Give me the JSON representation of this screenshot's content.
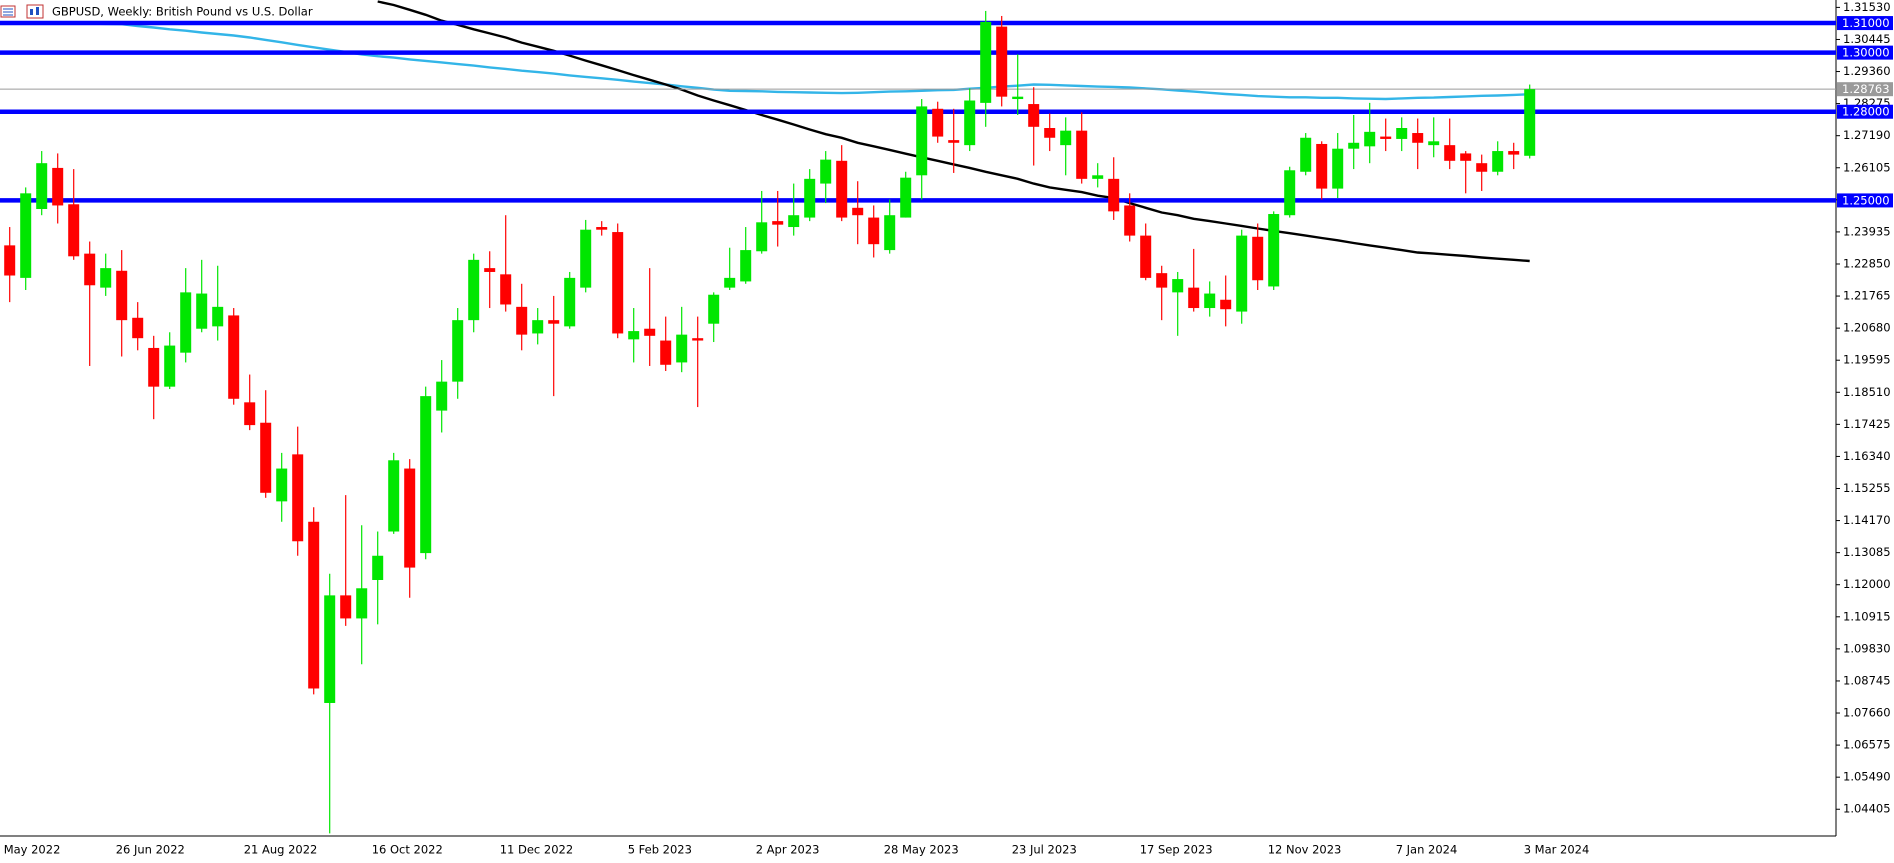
{
  "chart_data": {
    "type": "candlestick",
    "title": "GBPUSD, Weekly:  British Pound vs U.S. Dollar",
    "categories": [
      "May 2022",
      null,
      null,
      null,
      null,
      null,
      null,
      "26 Jun 2022",
      null,
      null,
      null,
      null,
      null,
      null,
      null,
      "21 Aug 2022",
      null,
      null,
      null,
      null,
      null,
      null,
      null,
      "16 Oct 2022",
      null,
      null,
      null,
      null,
      null,
      null,
      null,
      "11 Dec 2022",
      null,
      null,
      null,
      null,
      null,
      null,
      null,
      "5 Feb 2023",
      null,
      null,
      null,
      null,
      null,
      null,
      null,
      "2 Apr 2023",
      null,
      null,
      null,
      null,
      null,
      null,
      null,
      "28 May 2023",
      null,
      null,
      null,
      null,
      null,
      null,
      null,
      "23 Jul 2023",
      null,
      null,
      null,
      null,
      null,
      null,
      null,
      "17 Sep 2023",
      null,
      null,
      null,
      null,
      null,
      null,
      null,
      "12 Nov 2023",
      null,
      null,
      null,
      null,
      null,
      null,
      null,
      "7 Jan 2024",
      null,
      null,
      null,
      null,
      null,
      null,
      null,
      "3 Mar 2024"
    ],
    "open": [
      1.2348,
      1.2238,
      1.2471,
      1.261,
      1.2487,
      1.232,
      1.2205,
      1.2262,
      1.2103,
      1.2001,
      1.187,
      1.1985,
      1.2066,
      1.2074,
      1.2111,
      1.1817,
      1.1748,
      1.1482,
      1.1641,
      1.1413,
      1.08,
      1.1164,
      1.1086,
      1.1216,
      1.138,
      1.1593,
      1.1307,
      1.1789,
      1.1887,
      1.2095,
      1.2271,
      1.225,
      1.214,
      1.205,
      1.2095,
      1.2074,
      1.2205,
      1.241,
      1.2393,
      1.203,
      1.2066,
      1.2026,
      1.1952,
      1.2034,
      1.2083,
      1.2205,
      1.2226,
      1.2328,
      1.243,
      1.241,
      1.2442,
      1.2557,
      1.2634,
      1.2475,
      1.2442,
      1.2332,
      1.2442,
      1.2585,
      1.281,
      1.2704,
      1.2687,
      1.283,
      1.3088,
      1.2843,
      1.2826,
      1.2745,
      1.2687,
      1.2736,
      1.2573,
      1.2573,
      1.2483,
      1.2381,
      1.2254,
      1.2189,
      1.2205,
      1.2136,
      1.2164,
      1.2124,
      1.2377,
      1.2209,
      1.245,
      1.2597,
      1.2691,
      1.254,
      1.2675,
      1.2683,
      1.2716,
      1.2708,
      1.2728,
      1.2687,
      1.2687,
      1.2659,
      1.2626,
      1.2597,
      1.2667,
      1.2651
    ],
    "high": [
      1.241,
      1.2544,
      1.2667,
      1.2659,
      1.2606,
      1.2361,
      1.232,
      1.2332,
      1.2156,
      1.2042,
      1.2054,
      1.2271,
      1.2299,
      1.2279,
      1.2136,
      1.1911,
      1.1858,
      1.1646,
      1.1735,
      1.1462,
      1.1237,
      1.1503,
      1.1401,
      1.138,
      1.1646,
      1.1625,
      1.187,
      1.196,
      1.2136,
      1.232,
      1.2328,
      1.245,
      1.2218,
      1.2136,
      1.2177,
      1.2258,
      1.2434,
      1.243,
      1.2422,
      1.2136,
      1.2271,
      1.2107,
      1.214,
      1.2107,
      1.2189,
      1.234,
      1.241,
      1.2532,
      1.2532,
      1.2557,
      1.2606,
      1.2667,
      1.2687,
      1.2565,
      1.2483,
      1.2503,
      1.2597,
      1.2843,
      1.2834,
      1.281,
      1.2879,
      1.3141,
      1.3124,
      1.2994,
      1.2883,
      1.2794,
      1.2781,
      1.2798,
      1.2626,
      1.2646,
      1.2524,
      1.2422,
      1.2279,
      1.2258,
      1.2336,
      1.2226,
      1.2246,
      1.2401,
      1.2422,
      1.2463,
      1.2614,
      1.2728,
      1.27,
      1.2728,
      1.2789,
      1.283,
      1.2777,
      1.2781,
      1.2777,
      1.2781,
      1.2777,
      1.2667,
      1.2655,
      1.27,
      1.2695,
      1.2892
    ],
    "low": [
      1.2156,
      1.2197,
      1.245,
      1.2422,
      1.2299,
      1.194,
      1.2177,
      1.1972,
      1.1993,
      1.176,
      1.1862,
      1.1952,
      1.2054,
      1.2026,
      1.1809,
      1.1723,
      1.1494,
      1.1413,
      1.1298,
      1.0829,
      1.0359,
      1.1061,
      1.0931,
      1.1066,
      1.1372,
      1.1156,
      1.1286,
      1.1715,
      1.1829,
      1.2054,
      1.2136,
      1.2124,
      1.1993,
      1.2013,
      1.1838,
      1.2066,
      1.2189,
      1.2381,
      1.2034,
      1.1952,
      1.194,
      1.1923,
      1.1919,
      1.1801,
      1.2021,
      1.2197,
      1.2218,
      1.232,
      1.2344,
      1.2381,
      1.243,
      1.2491,
      1.243,
      1.2352,
      1.2307,
      1.232,
      1.2442,
      1.2503,
      1.2695,
      1.2593,
      1.2667,
      1.2749,
      1.2818,
      1.2789,
      1.2618,
      1.2667,
      1.2585,
      1.2557,
      1.2544,
      1.2434,
      1.2361,
      1.223,
      1.2095,
      1.2042,
      1.2124,
      1.2107,
      1.2074,
      1.2083,
      1.2197,
      1.2197,
      1.2442,
      1.2585,
      1.2503,
      1.2508,
      1.2606,
      1.2626,
      1.2667,
      1.2667,
      1.2606,
      1.2646,
      1.2606,
      1.2524,
      1.2532,
      1.2585,
      1.2606,
      1.2642
    ],
    "close": [
      1.2246,
      1.2524,
      1.2626,
      1.2483,
      1.2311,
      1.2213,
      1.2271,
      1.2095,
      1.2034,
      1.187,
      1.2009,
      1.2189,
      1.2185,
      1.214,
      1.1829,
      1.174,
      1.1511,
      1.1593,
      1.1347,
      1.0849,
      1.1164,
      1.1086,
      1.1188,
      1.1298,
      1.1621,
      1.1258,
      1.1838,
      1.1887,
      1.2095,
      1.2299,
      1.2258,
      1.2148,
      1.2046,
      1.2095,
      1.2083,
      1.2238,
      1.2401,
      1.2401,
      1.205,
      1.2058,
      1.2042,
      1.1944,
      1.2046,
      1.2026,
      1.2181,
      1.2238,
      1.2332,
      1.2426,
      1.2418,
      1.245,
      1.2573,
      1.2638,
      1.2442,
      1.245,
      1.2352,
      1.245,
      1.2577,
      1.2818,
      1.2716,
      1.2695,
      1.2838,
      1.3104,
      1.2851,
      1.2851,
      1.2749,
      1.2712,
      1.2736,
      1.2573,
      1.2585,
      1.2463,
      1.2381,
      1.2238,
      1.2205,
      1.2234,
      1.2136,
      1.2185,
      1.2132,
      1.2381,
      1.223,
      1.2454,
      1.2602,
      1.2712,
      1.254,
      1.2675,
      1.2695,
      1.2732,
      1.2708,
      1.2745,
      1.2695,
      1.27,
      1.2634,
      1.2634,
      1.2597,
      1.2667,
      1.2655,
      1.28763
    ],
    "up_color": "#00e600",
    "down_color": "#ff0000",
    "lines": [
      {
        "color": "#33b5e8",
        "values": [
          1.3103,
          1.3102,
          1.3102,
          1.3101,
          1.3099,
          1.3098,
          1.3097,
          1.3096,
          1.309,
          1.3085,
          1.3079,
          1.3074,
          1.3068,
          1.3063,
          1.3058,
          1.3051,
          1.3043,
          1.3035,
          1.3026,
          1.3018,
          1.301,
          1.3002,
          1.2994,
          1.2988,
          1.2983,
          1.2977,
          1.2972,
          1.2967,
          1.2961,
          1.2956,
          1.295,
          1.2945,
          1.2939,
          1.2934,
          1.2929,
          1.2923,
          1.2918,
          1.2913,
          1.2908,
          1.2902,
          1.2897,
          1.2892,
          1.2886,
          1.2881,
          1.2875,
          1.2871,
          1.287,
          1.2869,
          1.2867,
          1.2866,
          1.2865,
          1.2864,
          1.2863,
          1.2864,
          1.2866,
          1.2868,
          1.2869,
          1.2871,
          1.2873,
          1.2874,
          1.2878,
          1.2881,
          1.2885,
          1.2888,
          1.2892,
          1.2891,
          1.2889,
          1.2887,
          1.2885,
          1.2884,
          1.2882,
          1.2879,
          1.2876,
          1.2872,
          1.2868,
          1.2864,
          1.286,
          1.2857,
          1.2853,
          1.2851,
          1.2849,
          1.2849,
          1.2847,
          1.2847,
          1.2845,
          1.2844,
          1.2843,
          1.2845,
          1.2847,
          1.2848,
          1.285,
          1.2852,
          1.2854,
          1.2855,
          1.2857,
          1.2859
        ]
      },
      {
        "color": "#000000",
        "values": [
          null,
          null,
          null,
          null,
          null,
          null,
          null,
          null,
          null,
          null,
          null,
          null,
          null,
          null,
          null,
          null,
          null,
          null,
          null,
          null,
          null,
          null,
          null,
          1.3173,
          1.3161,
          1.3145,
          1.3128,
          1.3108,
          1.3094,
          1.3079,
          1.3065,
          1.3051,
          1.3034,
          1.302,
          1.3006,
          1.299,
          1.2973,
          1.2957,
          1.2941,
          1.2924,
          1.2908,
          1.2892,
          1.2875,
          1.2855,
          1.2838,
          1.2822,
          1.2806,
          1.2789,
          1.2773,
          1.2757,
          1.274,
          1.2724,
          1.2712,
          1.2695,
          1.2683,
          1.2671,
          1.2658,
          1.2646,
          1.2634,
          1.2622,
          1.261,
          1.2597,
          1.2585,
          1.2573,
          1.2557,
          1.2544,
          1.2536,
          1.2528,
          1.2516,
          1.2508,
          1.2491,
          1.2475,
          1.2459,
          1.245,
          1.2438,
          1.243,
          1.2422,
          1.2414,
          1.2405,
          1.2397,
          1.2389,
          1.2381,
          1.2373,
          1.2365,
          1.2356,
          1.2348,
          1.234,
          1.2332,
          1.2324,
          1.232,
          1.2316,
          1.2312,
          1.2307,
          1.2303,
          1.2299,
          1.2295
        ]
      }
    ],
    "levels": [
      {
        "value": 1.31,
        "label": "1.31000",
        "color": "#0000ff"
      },
      {
        "value": 1.3,
        "label": "1.30000",
        "color": "#0000ff"
      },
      {
        "value": 1.28,
        "label": "1.28000",
        "color": "#0000ff"
      },
      {
        "value": 1.25,
        "label": "1.25000",
        "color": "#0000ff"
      }
    ],
    "current_price": {
      "value": 1.28763,
      "label": "1.28763",
      "color": "#9a9a9a"
    },
    "ylim": [
      1.035,
      1.3178
    ],
    "yticks": [
      {
        "value": 1.3153,
        "label": "1.31530"
      },
      {
        "value": 1.30445,
        "label": "1.30445"
      },
      {
        "value": 1.2936,
        "label": "1.29360"
      },
      {
        "value": 1.28275,
        "label": "1.28275"
      },
      {
        "value": 1.2719,
        "label": "1.27190"
      },
      {
        "value": 1.26105,
        "label": "1.26105"
      },
      {
        "value": 1.2502,
        "label": "1.25020"
      },
      {
        "value": 1.23935,
        "label": "1.23935"
      },
      {
        "value": 1.2285,
        "label": "1.22850"
      },
      {
        "value": 1.21765,
        "label": "1.21765"
      },
      {
        "value": 1.2068,
        "label": "1.20680"
      },
      {
        "value": 1.19595,
        "label": "1.19595"
      },
      {
        "value": 1.1851,
        "label": "1.18510"
      },
      {
        "value": 1.17425,
        "label": "1.17425"
      },
      {
        "value": 1.1634,
        "label": "1.16340"
      },
      {
        "value": 1.15255,
        "label": "1.15255"
      },
      {
        "value": 1.1417,
        "label": "1.14170"
      },
      {
        "value": 1.13085,
        "label": "1.13085"
      },
      {
        "value": 1.12,
        "label": "1.12000"
      },
      {
        "value": 1.10915,
        "label": "1.10915"
      },
      {
        "value": 1.0983,
        "label": "1.09830"
      },
      {
        "value": 1.08745,
        "label": "1.08745"
      },
      {
        "value": 1.0766,
        "label": "1.07660"
      },
      {
        "value": 1.06575,
        "label": "1.06575"
      },
      {
        "value": 1.0549,
        "label": "1.05490"
      },
      {
        "value": 1.04405,
        "label": "1.04405"
      }
    ]
  }
}
